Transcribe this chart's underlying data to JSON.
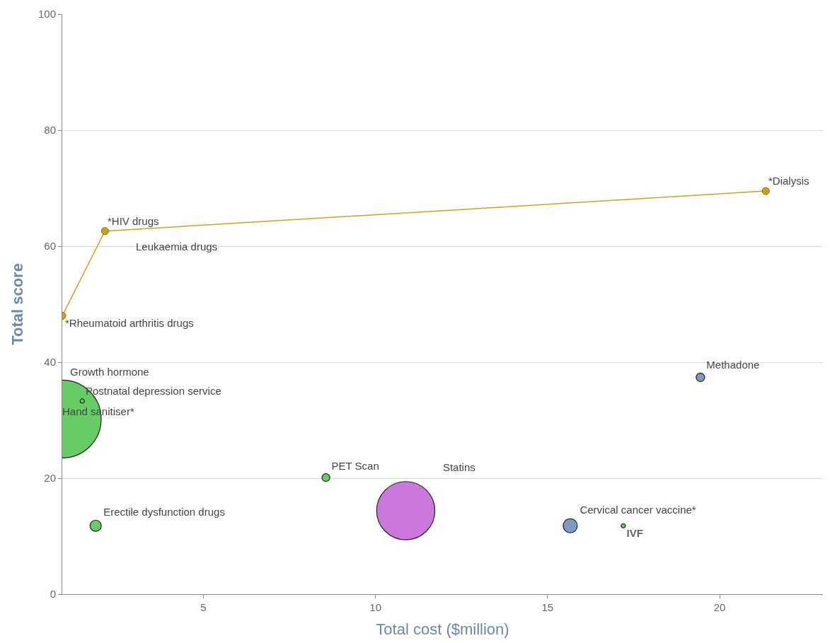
{
  "chart_data": {
    "type": "bubble",
    "xlabel": "Total cost ($million)",
    "ylabel": "Total score",
    "xlim": [
      0.9,
      23
    ],
    "xticks": [
      5,
      10,
      15,
      20
    ],
    "ylim": [
      0,
      100
    ],
    "yticks": [
      0,
      20,
      40,
      60,
      80,
      100
    ],
    "grid": "y",
    "series": [
      {
        "type": "line",
        "color": "#d4a017",
        "x": [
          0.9,
          2.14,
          21.34
        ],
        "values": [
          48,
          62.6,
          69.5
        ],
        "marker": "circle"
      },
      {
        "name": "Hand sanitiser*",
        "color": "#66cc66",
        "x": [
          0.9
        ],
        "values": [
          30.2
        ],
        "sizes": [
          1
        ]
      },
      {
        "name": "Postnatal depression service",
        "color": "#66cc66",
        "x": [
          1.48
        ],
        "values": [
          33.3
        ],
        "sizes": [
          0.003
        ]
      },
      {
        "name": "Erectile dysfunction drugs",
        "color": "#66cc66",
        "x": [
          1.87
        ],
        "values": [
          11.8
        ],
        "sizes": [
          0.021
        ]
      },
      {
        "name": "PET Scan",
        "color": "#66cc66",
        "x": [
          8.56
        ],
        "values": [
          20.1
        ],
        "sizes": [
          0.01
        ]
      },
      {
        "name": "Statins",
        "color": "#cc77dd",
        "x": [
          10.88
        ],
        "values": [
          14.4
        ],
        "sizes": [
          0.56
        ]
      },
      {
        "name": "Cervical cancer vaccine*",
        "color": "#7a9cc4",
        "x": [
          15.66
        ],
        "values": [
          11.8
        ],
        "sizes": [
          0.033
        ]
      },
      {
        "name": "IVF",
        "color": "#66cc66",
        "x": [
          17.2
        ],
        "values": [
          11.8
        ],
        "sizes": [
          0.003
        ]
      },
      {
        "name": "Methadone",
        "color": "#7a9cc4",
        "x": [
          19.44
        ],
        "values": [
          37.4
        ],
        "sizes": [
          0.012
        ]
      }
    ],
    "annotations": [
      {
        "text": "*HIV drugs",
        "x": 2.14,
        "y": 62.6
      },
      {
        "text": "*Dialysis",
        "x": 21.34,
        "y": 69.5
      },
      {
        "text": "*Rheumatoid arthritis drugs",
        "x": 0.9,
        "y": 48
      },
      "Leukaemia drugs",
      "Growth hormone"
    ]
  }
}
